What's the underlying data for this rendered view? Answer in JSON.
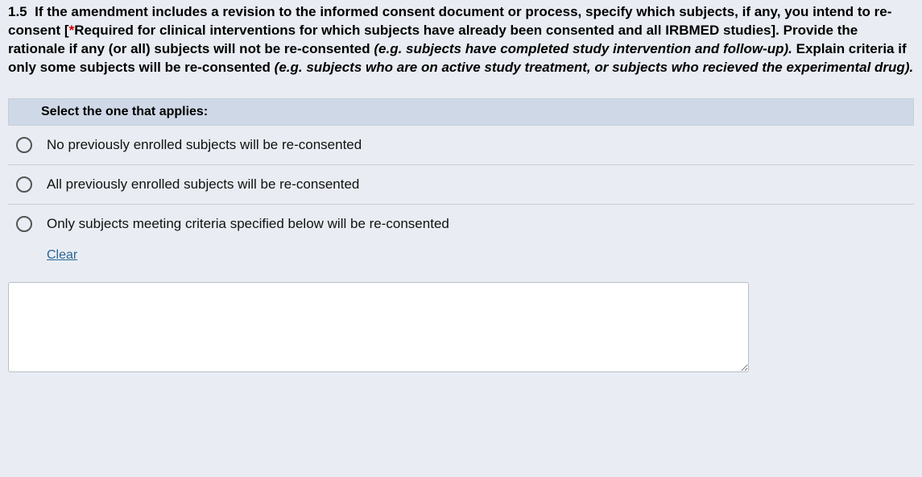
{
  "question": {
    "number": "1.5",
    "lead": "If the amendment includes a revision to the informed consent document or process, specify which subjects, if any, you intend to re-consent [",
    "star": "*",
    "after_star": "Required for clinical interventions for which subjects have already been consented and all IRBMED studies]. Provide the rationale if any (or all) subjects will not be re-consented ",
    "italic1": "(e.g. subjects have completed study intervention and follow-up).",
    "mid": " Explain criteria if only some subjects will be re-consented ",
    "italic2": "(e.g. subjects who are on active study treatment, or subjects who recieved the experimental drug).",
    "header": "Select the one that applies:"
  },
  "options": [
    {
      "label": "No previously enrolled subjects will be re-consented"
    },
    {
      "label": "All previously enrolled subjects will be re-consented"
    },
    {
      "label": "Only subjects meeting criteria specified below will be re-consented"
    }
  ],
  "clear_label": "Clear",
  "textarea_value": ""
}
